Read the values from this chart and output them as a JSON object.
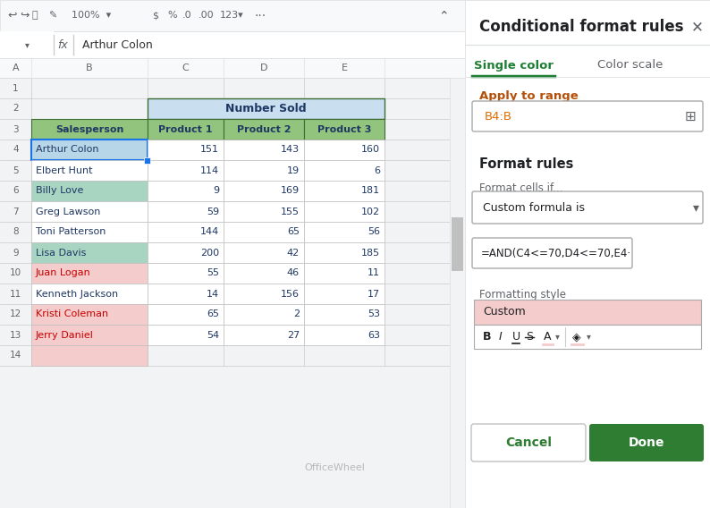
{
  "spreadsheet": {
    "formula_bar_text": "Arthur Colon",
    "col_headers": [
      "A",
      "B",
      "C",
      "D",
      "E"
    ],
    "merged_header": "Number Sold",
    "col_subheaders": [
      "Salesperson",
      "Product 1",
      "Product 2",
      "Product 3"
    ],
    "rows": [
      {
        "name": "Arthur Colon",
        "p1": 151,
        "p2": 143,
        "p3": 160,
        "name_bg": "#b7d7e8",
        "name_color": "#1f3864",
        "highlight": true
      },
      {
        "name": "Elbert Hunt",
        "p1": 114,
        "p2": 19,
        "p3": 6,
        "name_bg": "#ffffff",
        "name_color": "#1f3864",
        "highlight": false
      },
      {
        "name": "Billy Love",
        "p1": 9,
        "p2": 169,
        "p3": 181,
        "name_bg": "#a8d5c2",
        "name_color": "#1f3864",
        "highlight": false
      },
      {
        "name": "Greg Lawson",
        "p1": 59,
        "p2": 155,
        "p3": 102,
        "name_bg": "#ffffff",
        "name_color": "#1f3864",
        "highlight": false
      },
      {
        "name": "Toni Patterson",
        "p1": 144,
        "p2": 65,
        "p3": 56,
        "name_bg": "#ffffff",
        "name_color": "#1f3864",
        "highlight": false
      },
      {
        "name": "Lisa Davis",
        "p1": 200,
        "p2": 42,
        "p3": 185,
        "name_bg": "#a8d5c2",
        "name_color": "#1f3864",
        "highlight": false
      },
      {
        "name": "Juan Logan",
        "p1": 55,
        "p2": 46,
        "p3": 11,
        "name_bg": "#f4cccc",
        "name_color": "#cc0000",
        "highlight": false
      },
      {
        "name": "Kenneth Jackson",
        "p1": 14,
        "p2": 156,
        "p3": 17,
        "name_bg": "#ffffff",
        "name_color": "#1f3864",
        "highlight": false
      },
      {
        "name": "Kristi Coleman",
        "p1": 65,
        "p2": 2,
        "p3": 53,
        "name_bg": "#f4cccc",
        "name_color": "#cc0000",
        "highlight": false
      },
      {
        "name": "Jerry Daniel",
        "p1": 54,
        "p2": 27,
        "p3": 63,
        "name_bg": "#f4cccc",
        "name_color": "#cc0000",
        "highlight": false
      }
    ],
    "header_bg": "#c9dff0",
    "header_border_color": "#3d6b35",
    "subheader_bg": "#93c47d",
    "subheader_color": "#1f3864",
    "cell_bg": "#ffffff",
    "data_text_color": "#1f3864",
    "empty_col_b_bg": "#f4cccc",
    "grid_color": "#c0c0c0",
    "col_header_bg": "#f8f9fa",
    "col_header_color": "#666666",
    "row_num_color": "#666666"
  },
  "panel": {
    "title": "Conditional format rules",
    "tab1": "Single color",
    "tab2": "Color scale",
    "tab1_color": "#1e7e34",
    "tab2_color": "#5f6368",
    "apply_label": "Apply to range",
    "apply_label_color": "#b5500a",
    "range_value": "B4:B",
    "range_value_color": "#e06c00",
    "format_rules_label": "Format rules",
    "format_cells_if_label": "Format cells if...",
    "dropdown_value": "Custom formula is",
    "formula_value": "=AND(C4<=70,D4<=70,E4",
    "formatting_style_label": "Formatting style",
    "custom_label": "Custom",
    "custom_bg": "#f4cccc",
    "toolbar_bg": "#ffffff",
    "cancel_btn_text": "Cancel",
    "done_btn_text": "Done",
    "done_btn_bg": "#2e7d32",
    "done_btn_color": "#ffffff",
    "cancel_btn_color": "#2e7d32",
    "bg_color": "#ffffff",
    "panel_border": "#dadce0",
    "input_border": "#aaaaaa",
    "text_dark": "#202124",
    "text_gray": "#5f6368"
  }
}
